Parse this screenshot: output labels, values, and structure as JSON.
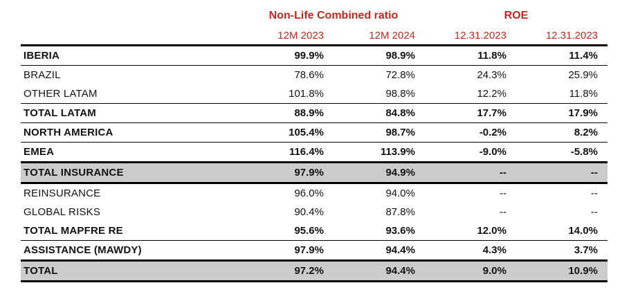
{
  "table": {
    "group_headers": [
      {
        "label": "Non-Life Combined ratio"
      },
      {
        "label": "ROE"
      }
    ],
    "column_headers": [
      "12M 2023",
      "12M 2024",
      "12.31.2023",
      "12.31.2023"
    ],
    "rows": [
      {
        "label": "IBERIA",
        "values": [
          "99.9%",
          "98.9%",
          "11.8%",
          "11.4%"
        ],
        "bold": true,
        "shaded": false,
        "border": "thin"
      },
      {
        "label": "BRAZIL",
        "values": [
          "78.6%",
          "72.8%",
          "24.3%",
          "25.9%"
        ],
        "bold": false,
        "shaded": false,
        "border": "none"
      },
      {
        "label": "OTHER LATAM",
        "values": [
          "101.8%",
          "98.8%",
          "12.2%",
          "11.8%"
        ],
        "bold": false,
        "shaded": false,
        "border": "thin"
      },
      {
        "label": "TOTAL LATAM",
        "values": [
          "88.9%",
          "84.8%",
          "17.7%",
          "17.9%"
        ],
        "bold": true,
        "shaded": false,
        "border": "thin"
      },
      {
        "label": "NORTH AMERICA",
        "values": [
          "105.4%",
          "98.7%",
          "-0.2%",
          "8.2%"
        ],
        "bold": true,
        "shaded": false,
        "border": "thin"
      },
      {
        "label": "EMEA",
        "values": [
          "116.4%",
          "113.9%",
          "-9.0%",
          "-5.8%"
        ],
        "bold": true,
        "shaded": false,
        "border": "thick"
      },
      {
        "label": "TOTAL INSURANCE",
        "values": [
          "97.9%",
          "94.9%",
          "--",
          "--"
        ],
        "bold": true,
        "shaded": true,
        "border": "thick"
      },
      {
        "label": "REINSURANCE",
        "values": [
          "96.0%",
          "94.0%",
          "--",
          "--"
        ],
        "bold": false,
        "shaded": false,
        "border": "none"
      },
      {
        "label": "GLOBAL RISKS",
        "values": [
          "90.4%",
          "87.8%",
          "--",
          "--"
        ],
        "bold": false,
        "shaded": false,
        "border": "none"
      },
      {
        "label": "TOTAL MAPFRE RE",
        "values": [
          "95.6%",
          "93.6%",
          "12.0%",
          "14.0%"
        ],
        "bold": true,
        "shaded": false,
        "border": "thin"
      },
      {
        "label": "ASSISTANCE (MAWDY)",
        "values": [
          "97.9%",
          "94.4%",
          "4.3%",
          "3.7%"
        ],
        "bold": true,
        "shaded": false,
        "border": "thick"
      },
      {
        "label": "TOTAL",
        "values": [
          "97.2%",
          "94.4%",
          "9.0%",
          "10.9%"
        ],
        "bold": true,
        "shaded": true,
        "border": "thick"
      }
    ],
    "colors": {
      "header_red": "#C3281F",
      "shaded_row_bg": "#CBCBCB",
      "rule_black": "#000000",
      "text_black": "#121212"
    }
  }
}
